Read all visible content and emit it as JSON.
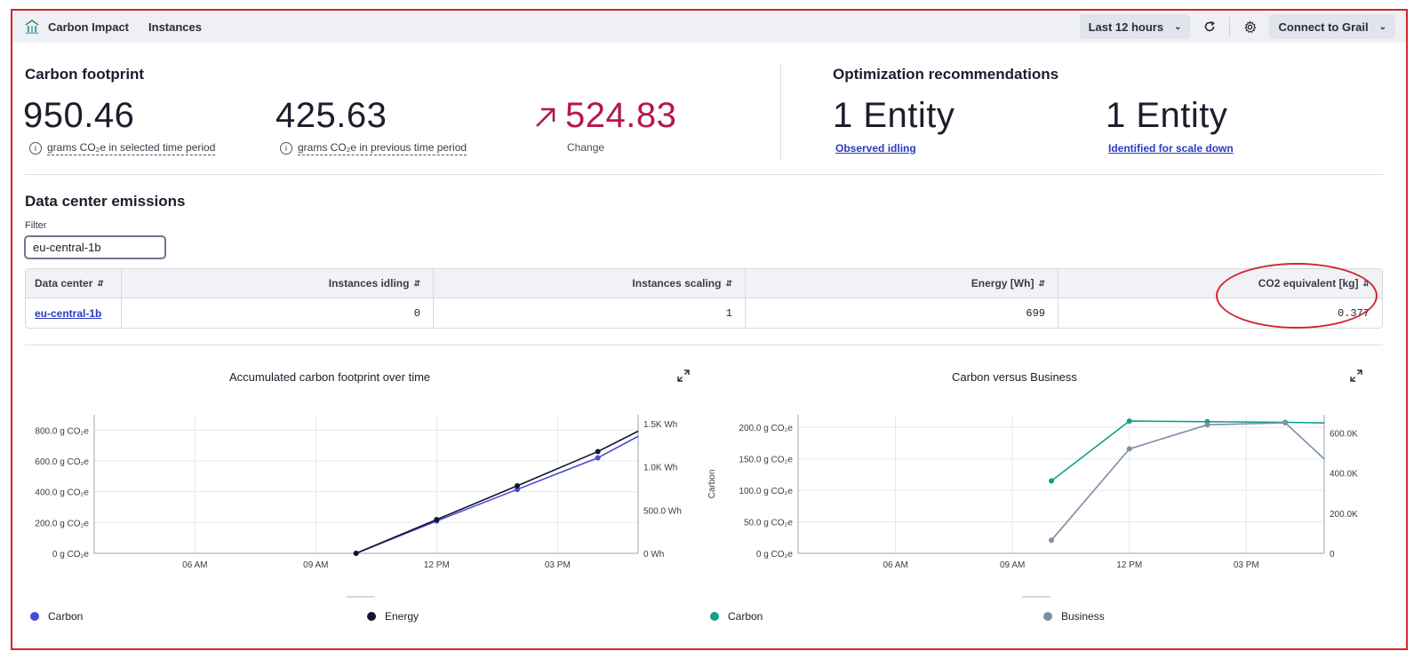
{
  "topbar": {
    "app_name": "Carbon Impact",
    "nav_instances": "Instances",
    "timeframe": "Last 12 hours",
    "connect": "Connect to Grail"
  },
  "footprint": {
    "title": "Carbon footprint",
    "current_value": "950.46",
    "current_label": "grams CO₂e in selected time period",
    "previous_value": "425.63",
    "previous_label": "grams CO₂e in previous time period",
    "change_value": "524.83",
    "change_label": "Change"
  },
  "optimization": {
    "title": "Optimization recommendations",
    "idling_value": "1 Entity",
    "idling_link": "Observed idling",
    "scale_value": "1 Entity",
    "scale_link": "Identified for scale down"
  },
  "emissions": {
    "title": "Data center emissions",
    "filter_label": "Filter",
    "filter_value": "eu-central-1b",
    "columns": [
      "Data center",
      "Instances idling",
      "Instances scaling",
      "Energy [Wh]",
      "CO2 equivalent [kg]"
    ],
    "rows": [
      {
        "data_center": "eu-central-1b",
        "idling": "0",
        "scaling": "1",
        "energy": "699",
        "co2": "0.377"
      }
    ]
  },
  "chart_data": [
    {
      "type": "line",
      "title": "Accumulated carbon footprint over time",
      "x_ticks": [
        "06 AM",
        "09 AM",
        "12 PM",
        "03 PM"
      ],
      "y_left_ticks": [
        "0 g CO₂e",
        "200.0 g CO₂e",
        "400.0 g CO₂e",
        "600.0 g CO₂e",
        "800.0 g CO₂e"
      ],
      "y_right_ticks": [
        "0 Wh",
        "500.0 Wh",
        "1.0K Wh",
        "1.5K Wh"
      ],
      "ylim_left": [
        0,
        900
      ],
      "ylim_right": [
        0,
        1600
      ],
      "xlim_hours": [
        3.5,
        17.0
      ],
      "series": [
        {
          "name": "Carbon",
          "axis": "left",
          "color": "#4a4ad8",
          "x": [
            10.0,
            12.0,
            14.0,
            16.0,
            17.0
          ],
          "y": [
            0,
            210,
            415,
            620,
            760
          ]
        },
        {
          "name": "Energy",
          "axis": "right",
          "color": "#14152e",
          "x": [
            10.0,
            12.0,
            14.0,
            16.0,
            17.0
          ],
          "y": [
            0,
            390,
            780,
            1175,
            1410
          ]
        }
      ],
      "legend_position": "bottom"
    },
    {
      "type": "line",
      "title": "Carbon versus Business",
      "x_ticks": [
        "06 AM",
        "09 AM",
        "12 PM",
        "03 PM"
      ],
      "y_left_ticks": [
        "0 g CO₂e",
        "50.0 g CO₂e",
        "100.0 g CO₂e",
        "150.0 g CO₂e",
        "200.0 g CO₂e"
      ],
      "y_right_ticks": [
        "0",
        "200.0K",
        "400.0K",
        "600.0K"
      ],
      "ylabel": "Carbon",
      "ylim_left": [
        0,
        220
      ],
      "ylim_right": [
        0,
        690000
      ],
      "xlim_hours": [
        3.5,
        17.0
      ],
      "series": [
        {
          "name": "Carbon",
          "axis": "left",
          "color": "#12a08a",
          "x": [
            10.0,
            12.0,
            14.0,
            16.0,
            17.0
          ],
          "y": [
            115,
            210,
            209,
            208,
            207
          ]
        },
        {
          "name": "Business",
          "axis": "right",
          "color": "#7f8ea3",
          "x": [
            10.0,
            12.0,
            14.0,
            16.0,
            17.0
          ],
          "y": [
            65000,
            520000,
            640000,
            650000,
            470000
          ]
        }
      ],
      "legend_position": "bottom"
    }
  ],
  "legend": {
    "chart1": [
      "Carbon",
      "Energy"
    ],
    "chart2": [
      "Carbon",
      "Business"
    ]
  },
  "colors": {
    "accent_red": "#b5174e",
    "link": "#2b3bbf",
    "annotation": "#d22630"
  }
}
